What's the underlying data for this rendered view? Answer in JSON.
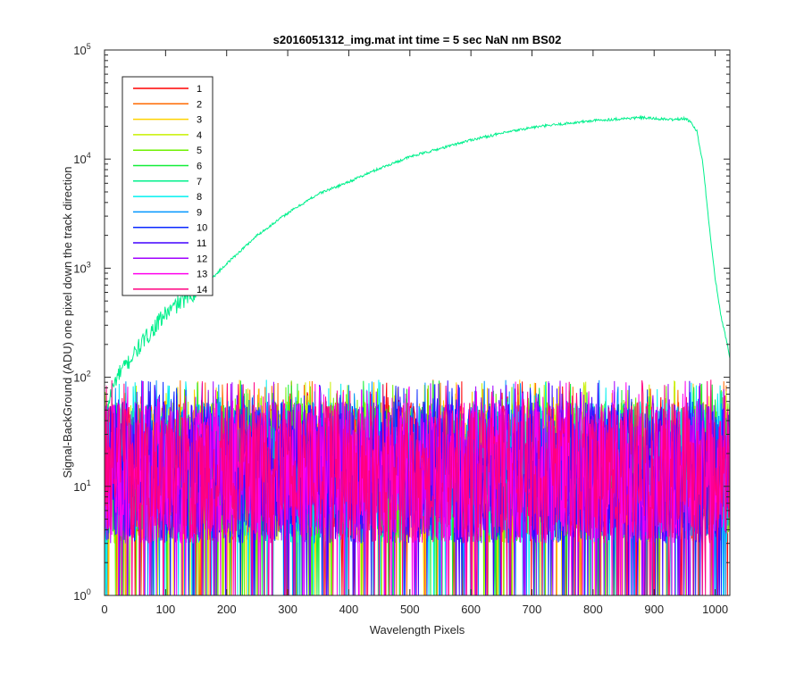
{
  "chart_data": {
    "type": "line",
    "title": "s2016051312_img.mat int time = 5 sec  NaN nm BS02",
    "xlabel": "Wavelength Pixels",
    "ylabel": "Signal-BackGround (ADU) one pixel down the track direction",
    "xlim": [
      0,
      1024
    ],
    "ylim": [
      1,
      100000
    ],
    "yscale": "log",
    "grid": false,
    "legend_position": "top-left",
    "x_ticks": [
      "0",
      "100",
      "200",
      "300",
      "400",
      "500",
      "600",
      "700",
      "800",
      "900",
      "1000"
    ],
    "x_tick_values": [
      0,
      100,
      200,
      300,
      400,
      500,
      600,
      700,
      800,
      900,
      1000
    ],
    "y_tick_values": [
      1,
      10,
      100,
      1000,
      10000,
      100000
    ],
    "y_tick_base": "10",
    "y_tick_exponents": [
      "0",
      "1",
      "2",
      "3",
      "4",
      "5"
    ],
    "series": [
      {
        "name": "1",
        "color": "#ff0000",
        "kind": "noise"
      },
      {
        "name": "2",
        "color": "#ff6a00",
        "kind": "noise"
      },
      {
        "name": "3",
        "color": "#ffd200",
        "kind": "noise"
      },
      {
        "name": "4",
        "color": "#c8f000",
        "kind": "noise"
      },
      {
        "name": "5",
        "color": "#6ef000",
        "kind": "noise"
      },
      {
        "name": "6",
        "color": "#12ee38",
        "kind": "noise"
      },
      {
        "name": "7",
        "color": "#00f08c",
        "kind": "signal",
        "x": [
          2,
          10,
          20,
          40,
          60,
          80,
          100,
          120,
          150,
          180,
          200,
          250,
          300,
          350,
          400,
          450,
          500,
          550,
          600,
          650,
          700,
          750,
          800,
          850,
          880,
          900,
          930,
          950,
          960,
          970,
          980,
          990,
          1000,
          1010,
          1020,
          1024
        ],
        "y": [
          45,
          70,
          100,
          140,
          200,
          280,
          380,
          470,
          620,
          850,
          1100,
          2000,
          3200,
          4800,
          6200,
          8200,
          10500,
          12500,
          15000,
          17200,
          19500,
          21000,
          22500,
          23500,
          24000,
          23500,
          23000,
          23500,
          22000,
          18000,
          9000,
          2500,
          800,
          350,
          200,
          150
        ]
      },
      {
        "name": "8",
        "color": "#00f0f0",
        "kind": "noise"
      },
      {
        "name": "9",
        "color": "#0096ff",
        "kind": "noise"
      },
      {
        "name": "10",
        "color": "#0a28ff",
        "kind": "noise"
      },
      {
        "name": "11",
        "color": "#4000ff",
        "kind": "noise"
      },
      {
        "name": "12",
        "color": "#a000ff",
        "kind": "noise"
      },
      {
        "name": "13",
        "color": "#ff00ee",
        "kind": "noise"
      },
      {
        "name": "14",
        "color": "#ff0080",
        "kind": "noise"
      }
    ],
    "noise_level_typical": [
      3,
      60
    ]
  }
}
